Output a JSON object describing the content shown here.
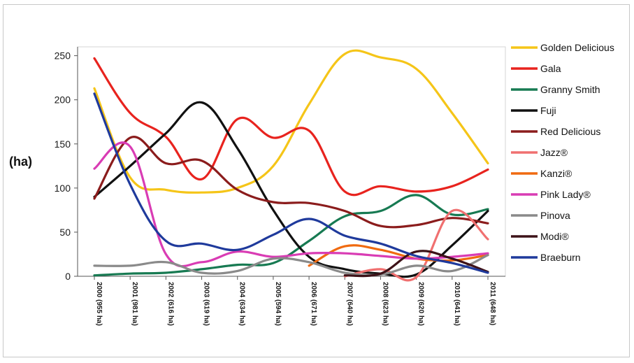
{
  "chart_data": {
    "type": "line",
    "ylabel": "(ha)",
    "xlabel": "",
    "title": "",
    "ylim": [
      0,
      260
    ],
    "yticks": [
      0,
      50,
      100,
      150,
      200,
      250
    ],
    "grid": false,
    "legend_position": "right",
    "categories": [
      "2000 (955 ha)",
      "2001 (981 ha)",
      "2002 (616 ha)",
      "2003 (619 ha)",
      "2004 (634 ha)",
      "2005 (594 ha)",
      "2006 (671 ha)",
      "2007 (640 ha)",
      "2008 (623 ha)",
      "2009 (620 ha)",
      "2010 (641 ha)",
      "2011 (648 ha)"
    ],
    "series": [
      {
        "name": "Golden Delicious",
        "color": "#f5c518",
        "values": [
          213,
          112,
          98,
          95,
          100,
          125,
          195,
          252,
          248,
          235,
          185,
          128
        ]
      },
      {
        "name": "Gala",
        "color": "#e8231e",
        "values": [
          247,
          185,
          158,
          110,
          178,
          157,
          165,
          96,
          102,
          96,
          102,
          121
        ]
      },
      {
        "name": "Granny Smith",
        "color": "#177a52",
        "values": [
          1,
          3,
          4,
          8,
          13,
          15,
          40,
          68,
          74,
          92,
          70,
          76
        ]
      },
      {
        "name": "Fuji",
        "color": "#111111",
        "values": [
          90,
          125,
          162,
          197,
          145,
          75,
          22,
          8,
          3,
          2,
          35,
          74
        ]
      },
      {
        "name": "Red Delicious",
        "color": "#8b1c1c",
        "values": [
          88,
          157,
          128,
          131,
          98,
          84,
          83,
          74,
          57,
          58,
          66,
          60
        ]
      },
      {
        "name": "Jazz®",
        "color": "#f07070",
        "values": [
          null,
          null,
          null,
          null,
          null,
          null,
          null,
          0,
          8,
          -1,
          74,
          42
        ]
      },
      {
        "name": "Kanzi®",
        "color": "#f06a10",
        "values": [
          null,
          null,
          null,
          null,
          null,
          null,
          12,
          34,
          30,
          20,
          18,
          24
        ]
      },
      {
        "name": "Pink Lady®",
        "color": "#d93cb4",
        "values": [
          122,
          147,
          25,
          16,
          28,
          22,
          26,
          26,
          23,
          20,
          22,
          26
        ]
      },
      {
        "name": "Pinova",
        "color": "#8a8a8a",
        "values": [
          12,
          12,
          16,
          4,
          6,
          20,
          16,
          4,
          2,
          12,
          6,
          24
        ]
      },
      {
        "name": "Modi®",
        "color": "#3d1218",
        "values": [
          null,
          null,
          null,
          null,
          null,
          null,
          null,
          1,
          3,
          28,
          20,
          5
        ]
      },
      {
        "name": "Braeburn",
        "color": "#1f3a9c",
        "values": [
          207,
          104,
          40,
          37,
          30,
          47,
          65,
          46,
          37,
          23,
          15,
          4
        ]
      }
    ]
  }
}
